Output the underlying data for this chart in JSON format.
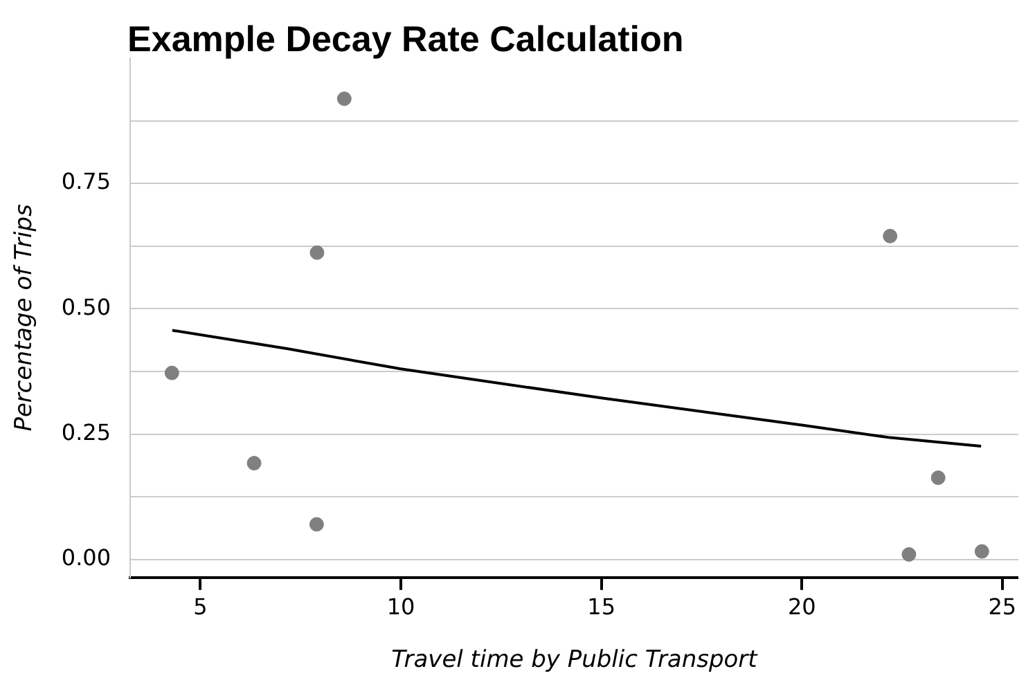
{
  "chart_data": {
    "type": "scatter",
    "title": "Example Decay Rate Calculation",
    "xlabel": "Travel time by Public Transport",
    "ylabel": "Percentage of Trips",
    "xlim": [
      3.25,
      25.4
    ],
    "xticks": [
      5,
      10,
      15,
      20,
      25
    ],
    "ylim": [
      -0.036,
      1.0
    ],
    "yticks": [
      {
        "value": 0,
        "label": "0.00"
      },
      {
        "value": 0.125,
        "label": null
      },
      {
        "value": 0.25,
        "label": "0.25"
      },
      {
        "value": 0.375,
        "label": null
      },
      {
        "value": 0.5,
        "label": "0.50"
      },
      {
        "value": 0.625,
        "label": null
      },
      {
        "value": 0.75,
        "label": "0.75"
      },
      {
        "value": 0.875,
        "label": null
      }
    ],
    "grid": "y",
    "legend": false,
    "series": [
      {
        "type": "scatter",
        "marker": "circle",
        "color": "#808080",
        "x": [
          4.29,
          6.34,
          7.91,
          7.9,
          8.59,
          22.2,
          23.4,
          22.67,
          24.49
        ],
        "values": [
          0.372,
          0.192,
          0.612,
          0.07,
          0.919,
          0.645,
          0.163,
          0.01,
          0.016
        ]
      },
      {
        "type": "line",
        "marker": "none",
        "color": "#000000",
        "line_style": "solid",
        "x": [
          4.3,
          7.19,
          10,
          15,
          20,
          22.2,
          24.47
        ],
        "values": [
          0.457,
          0.42,
          0.38,
          0.322,
          0.268,
          0.243,
          0.226
        ]
      }
    ]
  }
}
